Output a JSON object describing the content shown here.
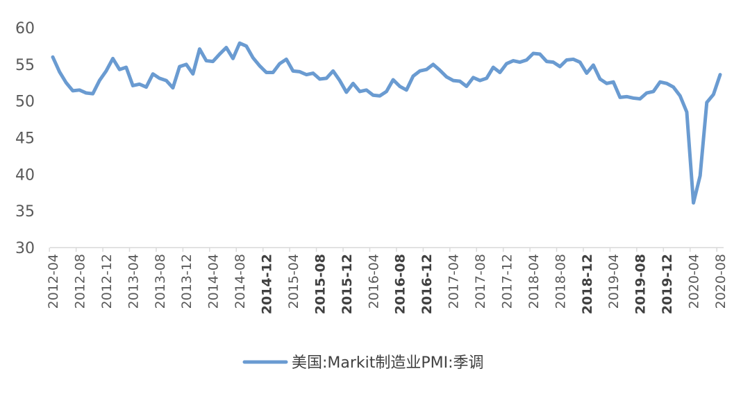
{
  "chart_data": {
    "type": "line",
    "title": "",
    "xlabel": "",
    "ylabel": "",
    "ylim": [
      30,
      60
    ],
    "yticks": [
      30,
      35,
      40,
      45,
      50,
      55,
      60
    ],
    "grid": false,
    "legend_position": "bottom",
    "x": [
      "2012-04",
      "2012-05",
      "2012-06",
      "2012-07",
      "2012-08",
      "2012-09",
      "2012-10",
      "2012-11",
      "2012-12",
      "2013-01",
      "2013-02",
      "2013-03",
      "2013-04",
      "2013-05",
      "2013-06",
      "2013-07",
      "2013-08",
      "2013-09",
      "2013-10",
      "2013-11",
      "2013-12",
      "2014-01",
      "2014-02",
      "2014-03",
      "2014-04",
      "2014-05",
      "2014-06",
      "2014-07",
      "2014-08",
      "2014-09",
      "2014-10",
      "2014-11",
      "2014-12",
      "2015-01",
      "2015-02",
      "2015-03",
      "2015-04",
      "2015-05",
      "2015-06",
      "2015-07",
      "2015-08",
      "2015-09",
      "2015-10",
      "2015-11",
      "2015-12",
      "2016-01",
      "2016-02",
      "2016-03",
      "2016-04",
      "2016-05",
      "2016-06",
      "2016-07",
      "2016-08",
      "2016-09",
      "2016-10",
      "2016-11",
      "2016-12",
      "2017-01",
      "2017-02",
      "2017-03",
      "2017-04",
      "2017-05",
      "2017-06",
      "2017-07",
      "2017-08",
      "2017-09",
      "2017-10",
      "2017-11",
      "2017-12",
      "2018-01",
      "2018-02",
      "2018-03",
      "2018-04",
      "2018-05",
      "2018-06",
      "2018-07",
      "2018-08",
      "2018-09",
      "2018-10",
      "2018-11",
      "2018-12",
      "2019-01",
      "2019-02",
      "2019-03",
      "2019-04",
      "2019-05",
      "2019-06",
      "2019-07",
      "2019-08",
      "2019-09",
      "2019-10",
      "2019-11",
      "2019-12",
      "2020-01",
      "2020-02",
      "2020-03",
      "2020-04",
      "2020-05",
      "2020-06",
      "2020-07",
      "2020-08"
    ],
    "x_tick_labels": [
      "2012-04",
      "2012-08",
      "2012-12",
      "2013-04",
      "2013-08",
      "2013-12",
      "2014-04",
      "2014-08",
      "2014-12",
      "2015-04",
      "2015-08",
      "2015-12",
      "2016-04",
      "2016-08",
      "2016-12",
      "2017-04",
      "2017-08",
      "2017-12",
      "2018-04",
      "2018-08",
      "2018-12",
      "2019-04",
      "2019-08",
      "2019-12",
      "2020-04",
      "2020-08"
    ],
    "x_tick_bold": [
      "2014-12",
      "2015-08",
      "2015-12",
      "2016-08",
      "2016-12",
      "2018-12",
      "2019-08",
      "2019-12"
    ],
    "series": [
      {
        "name": "美国:Markit制造业PMI:季调",
        "color": "#6A9BD1",
        "values": [
          56.0,
          54.0,
          52.5,
          51.4,
          51.5,
          51.1,
          51.0,
          52.8,
          54.1,
          55.8,
          54.3,
          54.6,
          52.1,
          52.3,
          51.9,
          53.7,
          53.1,
          52.8,
          51.8,
          54.7,
          55.0,
          53.7,
          57.1,
          55.5,
          55.4,
          56.4,
          57.3,
          55.8,
          57.9,
          57.5,
          55.9,
          54.8,
          53.9,
          53.9,
          55.1,
          55.7,
          54.1,
          54.0,
          53.6,
          53.8,
          53.0,
          53.1,
          54.1,
          52.8,
          51.2,
          52.4,
          51.3,
          51.5,
          50.8,
          50.7,
          51.3,
          52.9,
          52.0,
          51.5,
          53.4,
          54.1,
          54.3,
          55.0,
          54.2,
          53.3,
          52.8,
          52.7,
          52.0,
          53.2,
          52.8,
          53.1,
          54.6,
          53.9,
          55.1,
          55.5,
          55.3,
          55.6,
          56.5,
          56.4,
          55.4,
          55.3,
          54.7,
          55.6,
          55.7,
          55.3,
          53.8,
          54.9,
          53.0,
          52.4,
          52.6,
          50.5,
          50.6,
          50.4,
          50.3,
          51.1,
          51.3,
          52.6,
          52.4,
          51.9,
          50.7,
          48.5,
          36.1,
          39.8,
          49.8,
          50.9,
          53.6
        ]
      }
    ]
  }
}
